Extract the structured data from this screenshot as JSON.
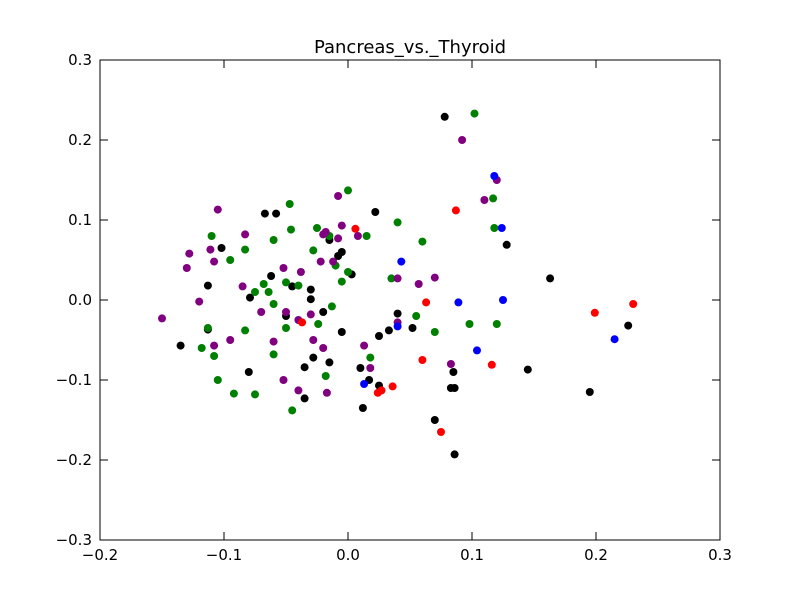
{
  "chart_data": {
    "type": "scatter",
    "title": "Pancreas_vs._Thyroid",
    "xlabel": "",
    "ylabel": "",
    "xlim": [
      -0.2,
      0.3
    ],
    "ylim": [
      -0.3,
      0.3
    ],
    "xticks": [
      -0.2,
      -0.1,
      0.0,
      0.1,
      0.2,
      0.3
    ],
    "xtick_labels": [
      "−0.2",
      "−0.1",
      "0.0",
      "0.1",
      "0.2",
      "0.3"
    ],
    "yticks": [
      -0.3,
      -0.2,
      -0.1,
      0.0,
      0.1,
      0.2,
      0.3
    ],
    "ytick_labels": [
      "−0.3",
      "−0.2",
      "−0.1",
      "0.0",
      "0.1",
      "0.2",
      "0.3"
    ],
    "grid": false,
    "legend": "none",
    "series": [
      {
        "color": "#000000",
        "points": [
          [
            0.078,
            0.229
          ],
          [
            -0.067,
            0.108
          ],
          [
            -0.058,
            0.108
          ],
          [
            0.022,
            0.11
          ],
          [
            0.128,
            0.069
          ],
          [
            -0.102,
            0.065
          ],
          [
            0.163,
            0.027
          ],
          [
            -0.062,
            0.03
          ],
          [
            -0.079,
            0.003
          ],
          [
            -0.045,
            0.017
          ],
          [
            -0.03,
            0.013
          ],
          [
            -0.03,
            0.001
          ],
          [
            -0.02,
            -0.015
          ],
          [
            -0.015,
            0.075
          ],
          [
            -0.008,
            0.055
          ],
          [
            -0.005,
            0.06
          ],
          [
            0.003,
            0.032
          ],
          [
            -0.005,
            -0.04
          ],
          [
            -0.05,
            -0.02
          ],
          [
            -0.113,
            0.018
          ],
          [
            -0.113,
            -0.037
          ],
          [
            -0.135,
            -0.057
          ],
          [
            -0.08,
            -0.09
          ],
          [
            -0.035,
            -0.084
          ],
          [
            -0.028,
            -0.072
          ],
          [
            -0.015,
            -0.078
          ],
          [
            -0.035,
            -0.123
          ],
          [
            0.01,
            -0.085
          ],
          [
            0.017,
            -0.1
          ],
          [
            0.025,
            -0.107
          ],
          [
            0.012,
            -0.135
          ],
          [
            0.025,
            -0.045
          ],
          [
            0.033,
            -0.038
          ],
          [
            0.04,
            -0.017
          ],
          [
            0.052,
            -0.035
          ],
          [
            0.085,
            -0.09
          ],
          [
            0.083,
            -0.11
          ],
          [
            0.086,
            -0.11
          ],
          [
            0.07,
            -0.15
          ],
          [
            0.086,
            -0.193
          ],
          [
            0.145,
            -0.087
          ],
          [
            0.195,
            -0.115
          ],
          [
            0.226,
            -0.032
          ]
        ]
      },
      {
        "color": "#008000",
        "points": [
          [
            0.102,
            0.233
          ],
          [
            0.117,
            0.127
          ],
          [
            -0.047,
            0.12
          ],
          [
            0.04,
            0.097
          ],
          [
            0.118,
            0.09
          ],
          [
            -0.11,
            0.08
          ],
          [
            -0.046,
            0.088
          ],
          [
            -0.06,
            0.075
          ],
          [
            0.06,
            0.073
          ],
          [
            -0.083,
            0.063
          ],
          [
            -0.095,
            0.05
          ],
          [
            -0.068,
            0.02
          ],
          [
            -0.064,
            0.01
          ],
          [
            -0.075,
            0.01
          ],
          [
            -0.05,
            0.022
          ],
          [
            -0.06,
            -0.005
          ],
          [
            -0.04,
            0.018
          ],
          [
            -0.025,
            0.09
          ],
          [
            -0.015,
            0.08
          ],
          [
            0.0,
            0.137
          ],
          [
            0.015,
            0.08
          ],
          [
            -0.01,
            0.043
          ],
          [
            -0.005,
            0.023
          ],
          [
            -0.013,
            -0.008
          ],
          [
            0.0,
            0.035
          ],
          [
            0.035,
            0.027
          ],
          [
            -0.024,
            -0.03
          ],
          [
            -0.05,
            -0.035
          ],
          [
            -0.06,
            -0.068
          ],
          [
            -0.083,
            -0.038
          ],
          [
            -0.113,
            -0.035
          ],
          [
            -0.118,
            -0.06
          ],
          [
            -0.108,
            -0.07
          ],
          [
            -0.105,
            -0.1
          ],
          [
            -0.092,
            -0.117
          ],
          [
            -0.075,
            -0.118
          ],
          [
            -0.045,
            -0.138
          ],
          [
            -0.018,
            -0.095
          ],
          [
            0.018,
            -0.072
          ],
          [
            0.055,
            -0.02
          ],
          [
            0.07,
            -0.04
          ],
          [
            0.098,
            -0.03
          ],
          [
            0.12,
            -0.03
          ],
          [
            -0.028,
            0.062
          ]
        ]
      },
      {
        "color": "#800080",
        "points": [
          [
            0.092,
            0.2
          ],
          [
            0.12,
            0.15
          ],
          [
            0.11,
            0.125
          ],
          [
            -0.105,
            0.113
          ],
          [
            -0.008,
            0.13
          ],
          [
            -0.083,
            0.082
          ],
          [
            -0.02,
            0.082
          ],
          [
            -0.018,
            0.085
          ],
          [
            -0.005,
            0.093
          ],
          [
            0.008,
            0.08
          ],
          [
            -0.111,
            0.063
          ],
          [
            -0.128,
            0.058
          ],
          [
            -0.108,
            0.048
          ],
          [
            -0.13,
            0.04
          ],
          [
            -0.052,
            0.04
          ],
          [
            -0.038,
            0.035
          ],
          [
            -0.022,
            0.048
          ],
          [
            -0.008,
            0.077
          ],
          [
            -0.012,
            0.048
          ],
          [
            0.04,
            0.027
          ],
          [
            0.057,
            0.02
          ],
          [
            0.07,
            0.028
          ],
          [
            -0.12,
            -0.002
          ],
          [
            -0.15,
            -0.023
          ],
          [
            -0.085,
            0.017
          ],
          [
            -0.07,
            -0.015
          ],
          [
            -0.05,
            -0.015
          ],
          [
            -0.04,
            -0.025
          ],
          [
            -0.03,
            -0.018
          ],
          [
            -0.028,
            -0.05
          ],
          [
            -0.02,
            -0.06
          ],
          [
            -0.06,
            -0.052
          ],
          [
            -0.095,
            -0.05
          ],
          [
            -0.108,
            -0.057
          ],
          [
            -0.052,
            -0.1
          ],
          [
            -0.04,
            -0.113
          ],
          [
            -0.017,
            -0.116
          ],
          [
            0.013,
            -0.057
          ],
          [
            0.018,
            -0.085
          ],
          [
            0.04,
            -0.028
          ],
          [
            0.083,
            -0.08
          ]
        ]
      },
      {
        "color": "#ff0000",
        "points": [
          [
            0.087,
            0.112
          ],
          [
            0.006,
            0.089
          ],
          [
            -0.037,
            -0.028
          ],
          [
            0.063,
            -0.003
          ],
          [
            0.23,
            -0.005
          ],
          [
            0.199,
            -0.016
          ],
          [
            0.06,
            -0.075
          ],
          [
            0.116,
            -0.081
          ],
          [
            0.036,
            -0.108
          ],
          [
            0.024,
            -0.116
          ],
          [
            0.027,
            -0.113
          ],
          [
            0.075,
            -0.165
          ]
        ]
      },
      {
        "color": "#0000ff",
        "points": [
          [
            0.118,
            0.155
          ],
          [
            0.124,
            0.09
          ],
          [
            0.043,
            0.048
          ],
          [
            0.089,
            -0.003
          ],
          [
            0.125,
            0.0
          ],
          [
            0.04,
            -0.033
          ],
          [
            0.104,
            -0.063
          ],
          [
            0.215,
            -0.049
          ],
          [
            0.013,
            -0.105
          ]
        ]
      }
    ]
  }
}
